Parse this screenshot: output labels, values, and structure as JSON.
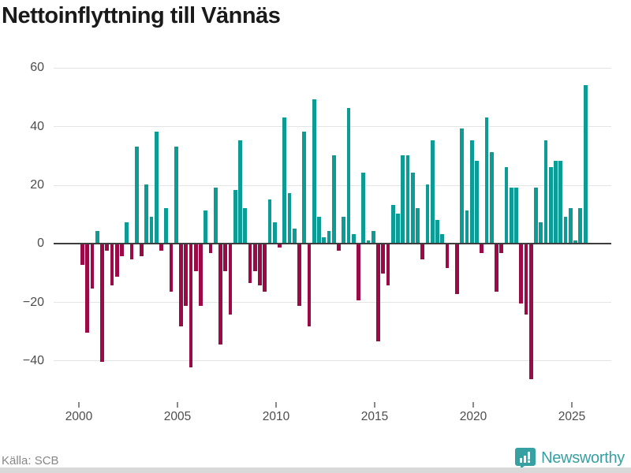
{
  "title": "Nettoinflyttning till Vännäs",
  "footer": {
    "source_label": "Källa: SCB",
    "brand": "Newsworthy"
  },
  "colors": {
    "positive": "#0d9b95",
    "negative": "#9c0947",
    "grid": "#e4e4e4",
    "zero_line": "#3d3d3d",
    "axis_text": "#4d4d4d",
    "title_text": "#1a1a1a",
    "source_text": "#878787",
    "brand_teal": "#36a0a2",
    "bottom_strip": "#d9d9d9"
  },
  "chart_data": {
    "type": "bar",
    "title": "Nettoinflyttning till Vännäs",
    "xlabel": "",
    "ylabel": "",
    "x_unit": "quarter",
    "start_quarter": "2000 Q1",
    "end_quarter": "2025 Q3",
    "ylim": [
      -50,
      62
    ],
    "grid": true,
    "legend": "none",
    "y_ticks": [
      {
        "v": 60,
        "label": "60"
      },
      {
        "v": 40,
        "label": "40"
      },
      {
        "v": 20,
        "label": "20"
      },
      {
        "v": 0,
        "label": "0"
      },
      {
        "v": -20,
        "label": "−20"
      },
      {
        "v": -40,
        "label": "−40"
      }
    ],
    "x_ticks": [
      {
        "v": 2000,
        "label": "2000"
      },
      {
        "v": 2005,
        "label": "2005"
      },
      {
        "v": 2010,
        "label": "2010"
      },
      {
        "v": 2015,
        "label": "2015"
      },
      {
        "v": 2020,
        "label": "2020"
      },
      {
        "v": 2025,
        "label": "2025"
      }
    ],
    "values_by_year": [
      {
        "year": 2000,
        "values": [
          -7,
          -30,
          -15,
          4
        ]
      },
      {
        "year": 2001,
        "values": [
          -40,
          -2,
          -14,
          -11
        ]
      },
      {
        "year": 2002,
        "values": [
          -4,
          7,
          -5,
          33
        ]
      },
      {
        "year": 2003,
        "values": [
          -4,
          20,
          9,
          38
        ]
      },
      {
        "year": 2004,
        "values": [
          -2,
          12,
          -16,
          33
        ]
      },
      {
        "year": 2005,
        "values": [
          -28,
          -21,
          -42,
          -9
        ]
      },
      {
        "year": 2006,
        "values": [
          -21,
          11,
          -3,
          19
        ]
      },
      {
        "year": 2007,
        "values": [
          -34,
          -9,
          -24,
          18
        ]
      },
      {
        "year": 2008,
        "values": [
          35,
          12,
          -13,
          -9
        ]
      },
      {
        "year": 2009,
        "values": [
          -14,
          -16,
          15,
          7
        ]
      },
      {
        "year": 2010,
        "values": [
          -1,
          43,
          17,
          5
        ]
      },
      {
        "year": 2011,
        "values": [
          -21,
          38,
          -28,
          49
        ]
      },
      {
        "year": 2012,
        "values": [
          9,
          2,
          4,
          30
        ]
      },
      {
        "year": 2013,
        "values": [
          -2,
          9,
          46,
          3
        ]
      },
      {
        "year": 2014,
        "values": [
          -19,
          24,
          1,
          4
        ]
      },
      {
        "year": 2015,
        "values": [
          -33,
          -10,
          -14,
          13
        ]
      },
      {
        "year": 2016,
        "values": [
          10,
          30,
          30,
          24
        ]
      },
      {
        "year": 2017,
        "values": [
          12,
          -5,
          20,
          35
        ]
      },
      {
        "year": 2018,
        "values": [
          8,
          3,
          -8,
          0
        ]
      },
      {
        "year": 2019,
        "values": [
          -17,
          39,
          11,
          35
        ]
      },
      {
        "year": 2020,
        "values": [
          28,
          -3,
          43,
          31
        ]
      },
      {
        "year": 2021,
        "values": [
          -16,
          -3,
          26,
          19
        ]
      },
      {
        "year": 2022,
        "values": [
          19,
          -20,
          -24,
          -46
        ]
      },
      {
        "year": 2023,
        "values": [
          19,
          7,
          35,
          26
        ]
      },
      {
        "year": 2024,
        "values": [
          28,
          28,
          9,
          12
        ]
      },
      {
        "year": 2025,
        "values": [
          1,
          12,
          54
        ]
      }
    ]
  }
}
